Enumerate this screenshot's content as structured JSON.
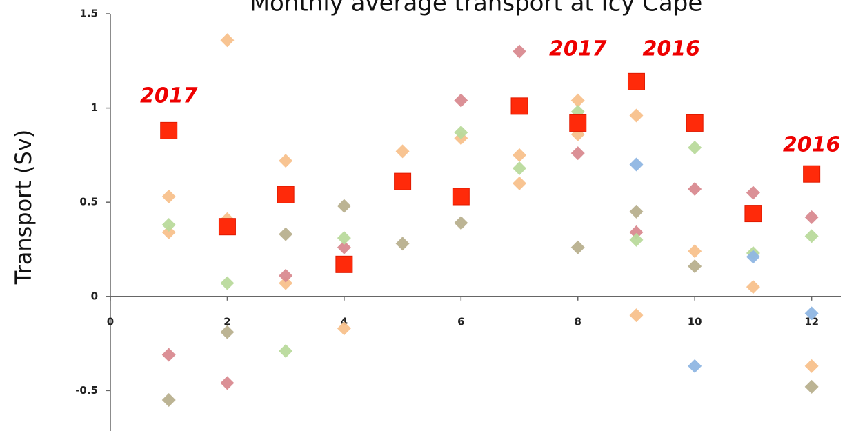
{
  "chart_data": {
    "type": "scatter",
    "title": "Monthly average transport at Icy Cape",
    "y_label": "Transport (Sv)",
    "xlim": [
      0,
      12.5
    ],
    "ylim": [
      -0.7,
      1.5
    ],
    "xticks": [
      0,
      2,
      4,
      6,
      8,
      10,
      12
    ],
    "yticks": [
      -0.5,
      0,
      0.5,
      1,
      1.5
    ],
    "series": [
      {
        "color": "#f8c18c",
        "marker": "diamond",
        "x": [
          1,
          2,
          3,
          5,
          6,
          7,
          8,
          9,
          10,
          11,
          12
        ],
        "y": [
          0.53,
          1.36,
          0.72,
          0.77,
          0.84,
          0.75,
          1.04,
          0.96,
          0.24,
          0.05,
          -0.37
        ]
      },
      {
        "color": "#f8c18c",
        "marker": "diamond",
        "x": [
          1,
          2,
          3,
          4,
          7,
          8,
          9
        ],
        "y": [
          0.34,
          0.41,
          0.07,
          -0.17,
          0.6,
          0.86,
          -0.1
        ]
      },
      {
        "color": "#d98a90",
        "marker": "diamond",
        "x": [
          1,
          2,
          3,
          4,
          6,
          7,
          8,
          9,
          10,
          11,
          12
        ],
        "y": [
          -0.31,
          -0.46,
          0.11,
          0.26,
          1.04,
          1.3,
          0.76,
          0.34,
          0.57,
          0.55,
          0.42
        ]
      },
      {
        "color": "#b9da9c",
        "marker": "diamond",
        "x": [
          1,
          2,
          3,
          4,
          6,
          7,
          8,
          9,
          10,
          11,
          12
        ],
        "y": [
          0.38,
          0.07,
          -0.29,
          0.31,
          0.87,
          0.68,
          0.98,
          0.3,
          0.79,
          0.23,
          0.32
        ]
      },
      {
        "color": "#b8b08e",
        "marker": "diamond",
        "x": [
          1,
          2,
          3,
          4,
          5,
          6,
          8,
          9,
          10,
          12
        ],
        "y": [
          -0.55,
          -0.19,
          0.33,
          0.48,
          0.28,
          0.39,
          0.26,
          0.45,
          0.16,
          -0.48
        ]
      },
      {
        "color": "#8fb6e3",
        "marker": "diamond",
        "x": [
          9,
          10,
          11,
          12
        ],
        "y": [
          0.7,
          -0.37,
          0.21,
          -0.09
        ]
      },
      {
        "color": "#ff2a0a",
        "marker": "square",
        "x": [
          1,
          2,
          3,
          4,
          5,
          6,
          7,
          8,
          9,
          10,
          11,
          12
        ],
        "y": [
          0.88,
          0.37,
          0.54,
          0.17,
          0.61,
          0.53,
          1.01,
          0.92,
          1.14,
          0.92,
          0.44,
          0.65
        ]
      }
    ],
    "annotations": [
      {
        "text": "2017",
        "x": 1,
        "y": 1.06
      },
      {
        "text": "2017",
        "x": 8,
        "y": 1.31
      },
      {
        "text": "2016",
        "x": 9.6,
        "y": 1.31
      },
      {
        "text": "2016",
        "x": 12,
        "y": 0.8
      }
    ]
  }
}
